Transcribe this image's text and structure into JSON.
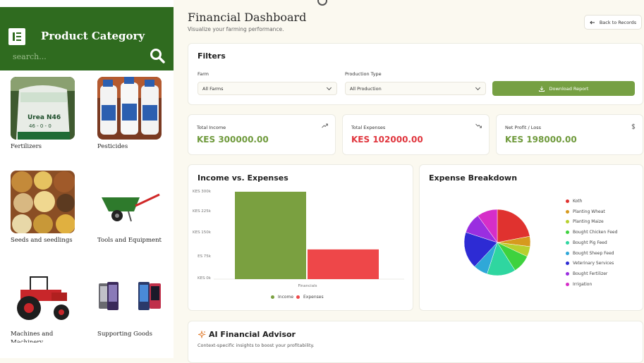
{
  "sidebar": {
    "title": "Product Category",
    "search_placeholder": "search...",
    "products": [
      {
        "label": "Fertilizers",
        "image_text": [
          "Urea N46",
          "46 - 0 - 0"
        ]
      },
      {
        "label": "Pesticides"
      },
      {
        "label": "Seeds and seedlings"
      },
      {
        "label": "Tools and Equipment"
      },
      {
        "label": "Machines and Machinery"
      },
      {
        "label": "Supporting Goods"
      }
    ]
  },
  "header": {
    "title": "Financial Dashboard",
    "subtitle": "Visualize your farming performance.",
    "back_label": "Back to Records"
  },
  "filters": {
    "title": "Filters",
    "farm_label": "Farm",
    "farm_value": "All Farms",
    "production_label": "Production Type",
    "production_value": "All Production",
    "download_label": "Download Report"
  },
  "stats": [
    {
      "label": "Total Income",
      "value": "KES 300000.00",
      "color": "#6f9a3c",
      "icon": "trend-up-icon"
    },
    {
      "label": "Total Expenses",
      "value": "KES 102000.00",
      "color": "#e0353d",
      "icon": "trend-down-icon"
    },
    {
      "label": "Net Profit / Loss",
      "value": "KES 198000.00",
      "color": "#6f9a3c",
      "icon": "dollar-icon"
    }
  ],
  "income_chart": {
    "title": "Income vs. Expenses",
    "chart_data": {
      "type": "bar",
      "categories": [
        "Financials"
      ],
      "series": [
        {
          "name": "Income",
          "values": [
            300000
          ],
          "color": "#7aa040"
        },
        {
          "name": "Expenses",
          "values": [
            102000
          ],
          "color": "#ee4749"
        }
      ],
      "yticks": [
        "KES 0k",
        "ES 75k",
        "KES 150k",
        "KES 225k",
        "KES 300k"
      ],
      "ylim": [
        0,
        300000
      ],
      "xlabel": "",
      "ylabel": ""
    }
  },
  "expense_chart": {
    "title": "Expense Breakdown",
    "chart_data": {
      "type": "pie",
      "slices": [
        {
          "name": "Koth",
          "value": 22,
          "color": "#e0322f"
        },
        {
          "name": "Planting Wheat",
          "value": 5,
          "color": "#d69a1e"
        },
        {
          "name": "Planting Maize",
          "value": 5,
          "color": "#b8d02e"
        },
        {
          "name": "Bought Chicken Feed",
          "value": 9,
          "color": "#3ed23e"
        },
        {
          "name": "Bought Pig Feed",
          "value": 14,
          "color": "#2fd6a0"
        },
        {
          "name": "Bought Sheep Feed",
          "value": 7,
          "color": "#2fa8d8"
        },
        {
          "name": "Veterinary Services",
          "value": 18,
          "color": "#2d2bd4"
        },
        {
          "name": "Bought Fertilizer",
          "value": 10,
          "color": "#9a2ee0"
        },
        {
          "name": "Irrigation",
          "value": 10,
          "color": "#d62ec8"
        }
      ]
    }
  },
  "advisor": {
    "title": "AI Financial Advisor",
    "subtitle": "Context-specific insights to boost your profitability."
  }
}
